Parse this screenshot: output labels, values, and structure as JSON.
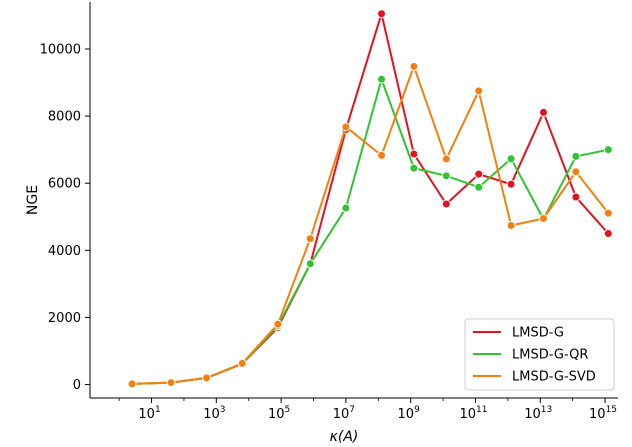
{
  "chart_data": {
    "type": "line",
    "xlabel": "κ(A)",
    "ylabel": "NGE",
    "xscale": "log10",
    "xlim_exp": [
      -0.9,
      15.4
    ],
    "ylim": [
      -400,
      11400
    ],
    "x_ticks": [
      {
        "base": "10",
        "exp": "1",
        "value": 1
      },
      {
        "base": "10",
        "exp": "3",
        "value": 3
      },
      {
        "base": "10",
        "exp": "5",
        "value": 5
      },
      {
        "base": "10",
        "exp": "7",
        "value": 7
      },
      {
        "base": "10",
        "exp": "9",
        "value": 9
      },
      {
        "base": "10",
        "exp": "11",
        "value": 11
      },
      {
        "base": "10",
        "exp": "13",
        "value": 13
      },
      {
        "base": "10",
        "exp": "15",
        "value": 15
      }
    ],
    "y_ticks": [
      "0",
      "2000",
      "4000",
      "6000",
      "8000",
      "10000"
    ],
    "x_log10": [
      0.4,
      1.6,
      2.7,
      3.8,
      4.9,
      5.9,
      7.0,
      8.1,
      9.1,
      10.1,
      11.1,
      12.1,
      13.1,
      14.1,
      15.1
    ],
    "series": [
      {
        "name": "LMSD-G",
        "color": "#e3121e",
        "values": [
          20,
          60,
          200,
          620,
          1700,
          3600,
          7600,
          11050,
          6870,
          5380,
          6270,
          5970,
          8110,
          5590,
          4500
        ]
      },
      {
        "name": "LMSD-G-QR",
        "color": "#2ec52e",
        "values": [
          20,
          60,
          200,
          620,
          1750,
          3600,
          5260,
          9100,
          6450,
          6220,
          5880,
          6730,
          4930,
          6800,
          7000
        ]
      },
      {
        "name": "LMSD-G-SVD",
        "color": "#f57f0e",
        "values": [
          20,
          60,
          200,
          630,
          1800,
          4350,
          7680,
          6830,
          9480,
          6720,
          8750,
          4740,
          4950,
          6340,
          5110
        ]
      }
    ],
    "legend_position": "bottom-right",
    "grid": false
  }
}
